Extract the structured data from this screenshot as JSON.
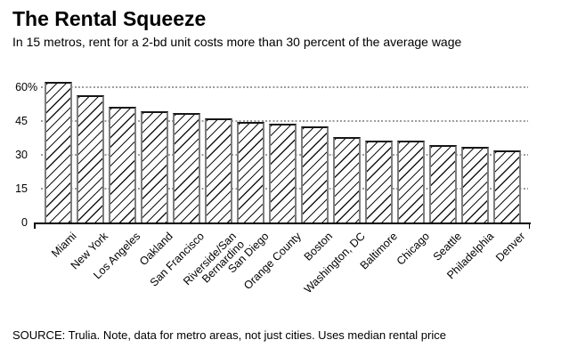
{
  "chart_data": {
    "type": "bar",
    "title": "The Rental Squeeze",
    "subtitle": "In 15 metros, rent for a 2-bd unit costs more than 30 percent of the average wage",
    "source": "SOURCE: Trulia. Note, data for metro areas, not just cities. Uses median rental price",
    "categories": [
      "Miami",
      "New York",
      "Los Angeles",
      "Oakland",
      "San Francisco",
      "Riverside/San\nBernardino",
      "San Diego",
      "Orange County",
      "Boston",
      "Washington, DC",
      "Baltimore",
      "Chicago",
      "Seattle",
      "Philadelphia",
      "Denver"
    ],
    "values": [
      62.5,
      56.5,
      51.5,
      49.5,
      48.5,
      46,
      44.5,
      44,
      42.5,
      38,
      36.5,
      36.5,
      34.5,
      33.5,
      32
    ],
    "unit": "percent of average wage",
    "xlabel": "",
    "ylabel": "",
    "ylim": [
      0,
      64
    ],
    "yticks": [
      {
        "v": 0,
        "label": "0"
      },
      {
        "v": 15,
        "label": "15"
      },
      {
        "v": 30,
        "label": "30"
      },
      {
        "v": 45,
        "label": "45"
      },
      {
        "v": 60,
        "label": "60",
        "suffix": "%"
      }
    ],
    "grid": "horizontal dotted lines at 15, 30, 45, 60",
    "legend_position": "none",
    "style": {
      "bar_fill": "#ffffff",
      "bar_hatch": "/",
      "hatch_color": "#161616",
      "bar_edge_color": "#7e7e7e",
      "bar_top_edge_color": "#161616",
      "gridline_color": "#9c9c9c",
      "axis_color": "#000000",
      "text_color": "#000000",
      "background": "#ffffff"
    }
  }
}
